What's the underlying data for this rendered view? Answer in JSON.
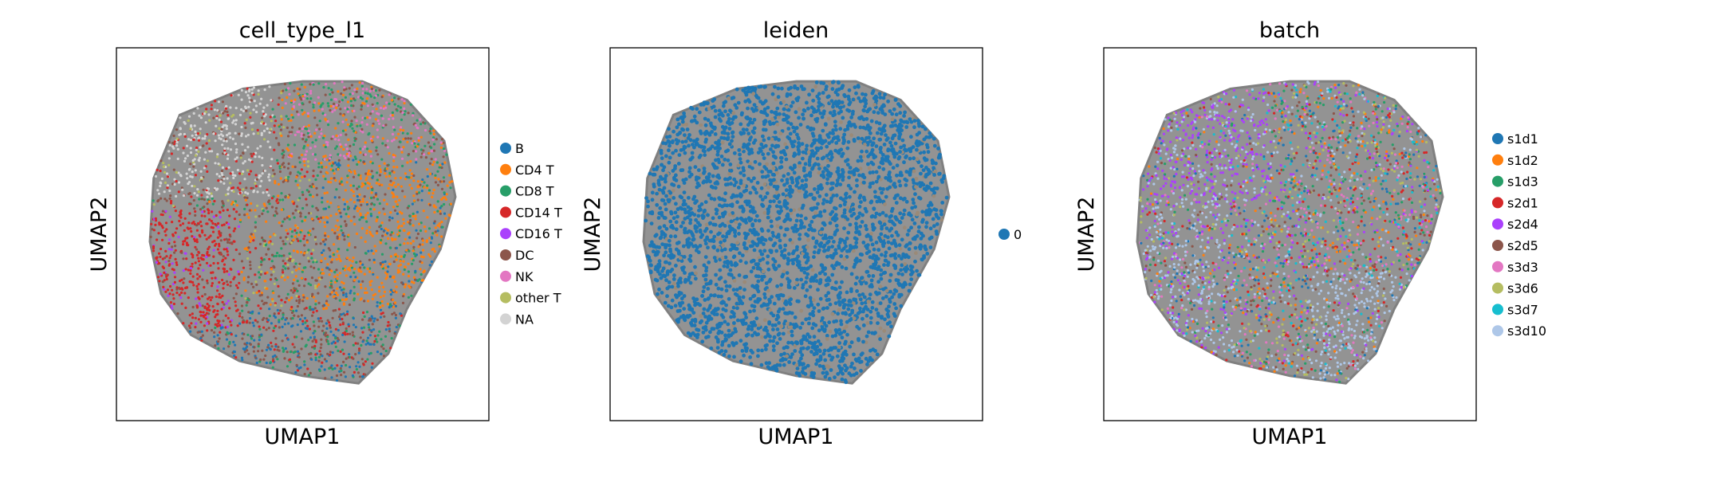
{
  "chart_data": [
    {
      "type": "scatter",
      "title": "cell_type_l1",
      "xlabel": "UMAP1",
      "ylabel": "UMAP2",
      "grid": false,
      "legend_placement": "right",
      "series": [
        {
          "name": "B",
          "color": "#1f77b4"
        },
        {
          "name": "CD4 T",
          "color": "#ff7f0e"
        },
        {
          "name": "CD8 T",
          "color": "#279e68"
        },
        {
          "name": "CD14 T",
          "color": "#d62728"
        },
        {
          "name": "CD16 T",
          "color": "#aa40fc"
        },
        {
          "name": "DC",
          "color": "#8c564b"
        },
        {
          "name": "NK",
          "color": "#e377c2"
        },
        {
          "name": "other T",
          "color": "#b5bd61"
        },
        {
          "name": "NA",
          "color": "#d3d3d3"
        }
      ]
    },
    {
      "type": "scatter",
      "title": "leiden",
      "xlabel": "UMAP1",
      "ylabel": "UMAP2",
      "grid": false,
      "legend_placement": "right",
      "series": [
        {
          "name": "0",
          "color": "#1f77b4"
        }
      ]
    },
    {
      "type": "scatter",
      "title": "batch",
      "xlabel": "UMAP1",
      "ylabel": "UMAP2",
      "grid": false,
      "legend_placement": "right",
      "series": [
        {
          "name": "s1d1",
          "color": "#1f77b4"
        },
        {
          "name": "s1d2",
          "color": "#ff7f0e"
        },
        {
          "name": "s1d3",
          "color": "#279e68"
        },
        {
          "name": "s2d1",
          "color": "#d62728"
        },
        {
          "name": "s2d4",
          "color": "#aa40fc"
        },
        {
          "name": "s2d5",
          "color": "#8c564b"
        },
        {
          "name": "s3d3",
          "color": "#e377c2"
        },
        {
          "name": "s3d6",
          "color": "#b5bd61"
        },
        {
          "name": "s3d7",
          "color": "#17becf"
        },
        {
          "name": "s3d10",
          "color": "#aec7e8"
        }
      ]
    }
  ],
  "colors": {
    "edge_gray": "#808080",
    "frame": "#000000"
  }
}
